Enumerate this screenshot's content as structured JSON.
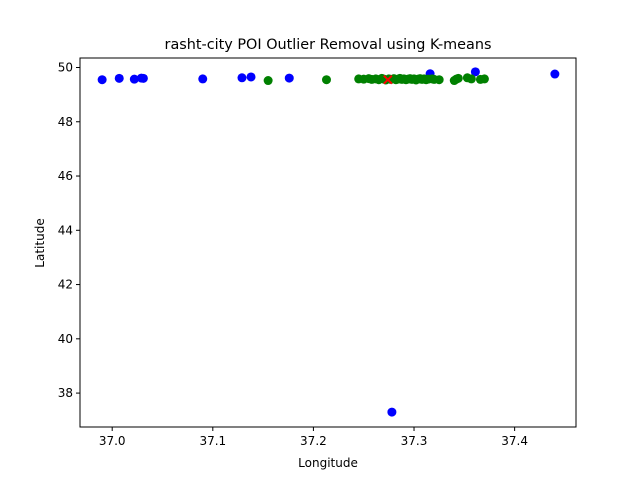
{
  "chart_data": {
    "type": "scatter",
    "title": "rasht-city POI Outlier Removal using K-means",
    "xlabel": "Longitude",
    "ylabel": "Latitude",
    "xlim": [
      36.968,
      37.461
    ],
    "ylim": [
      36.75,
      50.35
    ],
    "xticks": [
      37.0,
      37.1,
      37.2,
      37.3,
      37.4
    ],
    "xtick_labels": [
      "37.0",
      "37.1",
      "37.2",
      "37.3",
      "37.4"
    ],
    "yticks": [
      38,
      40,
      42,
      44,
      46,
      48,
      50
    ],
    "ytick_labels": [
      "38",
      "40",
      "42",
      "44",
      "46",
      "48",
      "50"
    ],
    "grid": false,
    "colors": {
      "outlier": "#0000ff",
      "inlier": "#008000",
      "centroid": "#ff0000"
    },
    "series": [
      {
        "role": "outliers",
        "color": "#0000ff",
        "marker": "circle",
        "points": [
          [
            36.99,
            49.55
          ],
          [
            37.007,
            49.6
          ],
          [
            37.022,
            49.57
          ],
          [
            37.029,
            49.61
          ],
          [
            37.031,
            49.6
          ],
          [
            37.09,
            49.58
          ],
          [
            37.129,
            49.62
          ],
          [
            37.138,
            49.65
          ],
          [
            37.176,
            49.61
          ],
          [
            37.316,
            49.77
          ],
          [
            37.361,
            49.84
          ],
          [
            37.44,
            49.76
          ],
          [
            37.278,
            37.3
          ]
        ]
      },
      {
        "role": "inliers",
        "color": "#008000",
        "marker": "circle",
        "points": [
          [
            37.155,
            49.52
          ],
          [
            37.213,
            49.55
          ],
          [
            37.245,
            49.58
          ],
          [
            37.25,
            49.57
          ],
          [
            37.255,
            49.59
          ],
          [
            37.258,
            49.56
          ],
          [
            37.262,
            49.58
          ],
          [
            37.265,
            49.55
          ],
          [
            37.268,
            49.6
          ],
          [
            37.27,
            49.57
          ],
          [
            37.272,
            49.54
          ],
          [
            37.275,
            49.58
          ],
          [
            37.277,
            49.56
          ],
          [
            37.28,
            49.59
          ],
          [
            37.282,
            49.55
          ],
          [
            37.284,
            49.57
          ],
          [
            37.286,
            49.6
          ],
          [
            37.288,
            49.56
          ],
          [
            37.29,
            49.58
          ],
          [
            37.292,
            49.55
          ],
          [
            37.294,
            49.57
          ],
          [
            37.296,
            49.59
          ],
          [
            37.298,
            49.56
          ],
          [
            37.3,
            49.58
          ],
          [
            37.302,
            49.54
          ],
          [
            37.304,
            49.57
          ],
          [
            37.306,
            49.59
          ],
          [
            37.308,
            49.56
          ],
          [
            37.31,
            49.58
          ],
          [
            37.312,
            49.55
          ],
          [
            37.314,
            49.57
          ],
          [
            37.318,
            49.58
          ],
          [
            37.32,
            49.56
          ],
          [
            37.325,
            49.55
          ],
          [
            37.34,
            49.52
          ],
          [
            37.342,
            49.57
          ],
          [
            37.344,
            49.6
          ],
          [
            37.353,
            49.62
          ],
          [
            37.357,
            49.58
          ],
          [
            37.366,
            49.56
          ],
          [
            37.37,
            49.58
          ]
        ]
      },
      {
        "role": "centroid",
        "color": "#ff0000",
        "marker": "x",
        "points": [
          [
            37.274,
            49.55
          ]
        ]
      }
    ]
  }
}
